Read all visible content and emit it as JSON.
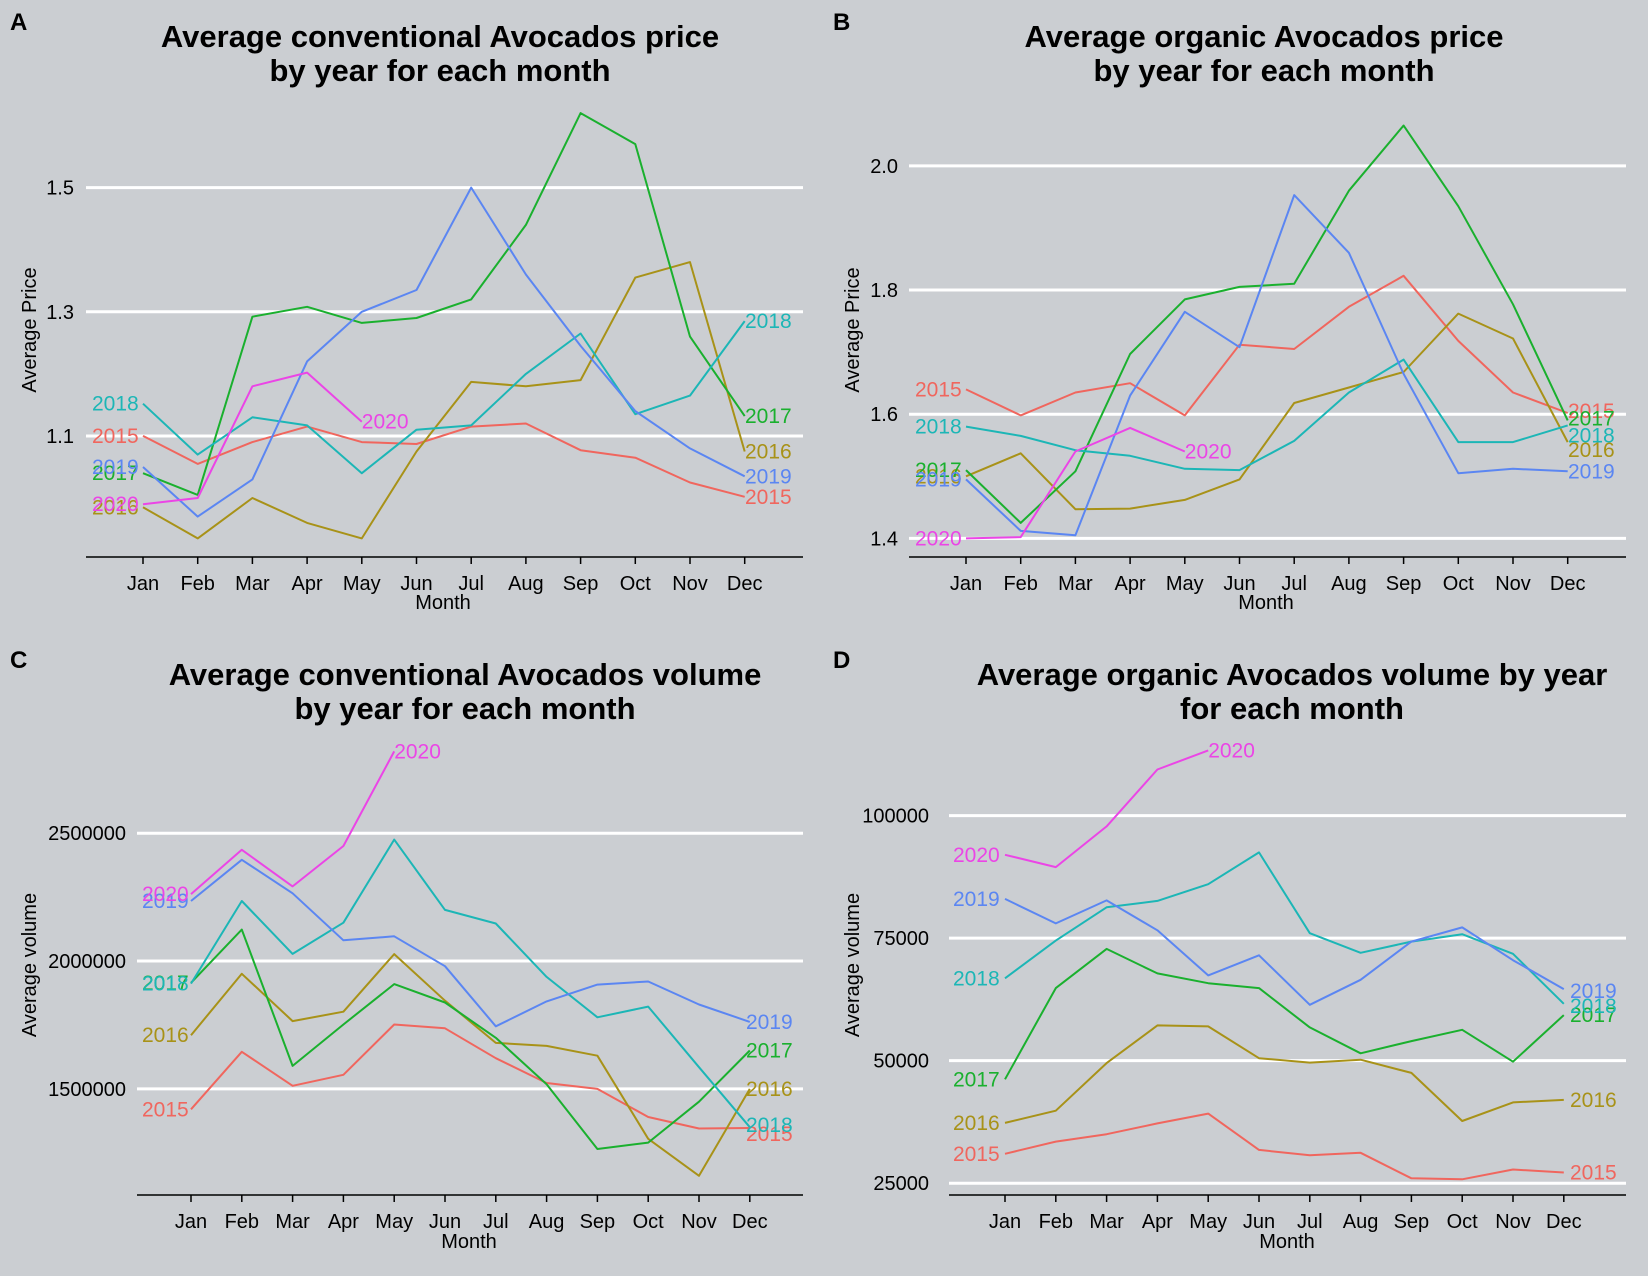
{
  "months": [
    "Jan",
    "Feb",
    "Mar",
    "Apr",
    "May",
    "Jun",
    "Jul",
    "Aug",
    "Sep",
    "Oct",
    "Nov",
    "Dec"
  ],
  "colors": {
    "2015": "#f0665e",
    "2016": "#a89218",
    "2017": "#1ab02e",
    "2018": "#1cb6b6",
    "2019": "#5b86f2",
    "2020": "#eb45e6"
  },
  "chart_data": [
    {
      "panel": "A",
      "type": "line",
      "title": [
        "Average conventional Avocados price",
        "by year for each month"
      ],
      "xlabel": "Month",
      "ylabel": "Average Price",
      "ylim": [
        0.905,
        1.625
      ],
      "yticks": [
        1.1,
        1.3,
        1.5
      ],
      "ytick_labels": [
        "1.1",
        "1.3",
        "1.5"
      ],
      "grid": true,
      "legend": "none",
      "series": [
        {
          "name": "2015",
          "values": [
            1.1,
            1.055,
            1.09,
            1.115,
            1.09,
            1.087,
            1.115,
            1.12,
            1.077,
            1.065,
            1.025,
            1.002
          ]
        },
        {
          "name": "2016",
          "values": [
            0.985,
            0.935,
            1.0,
            0.96,
            0.935,
            1.075,
            1.187,
            1.18,
            1.19,
            1.355,
            1.38,
            1.075
          ]
        },
        {
          "name": "2017",
          "values": [
            1.04,
            1.005,
            1.292,
            1.308,
            1.282,
            1.29,
            1.32,
            1.44,
            1.62,
            1.57,
            1.26,
            1.132
          ]
        },
        {
          "name": "2018",
          "values": [
            1.152,
            1.07,
            1.13,
            1.117,
            1.04,
            1.11,
            1.117,
            1.2,
            1.265,
            1.135,
            1.165,
            1.285
          ]
        },
        {
          "name": "2019",
          "values": [
            1.05,
            0.97,
            1.03,
            1.22,
            1.3,
            1.335,
            1.5,
            1.36,
            1.245,
            1.14,
            1.08,
            1.035
          ]
        },
        {
          "name": "2020",
          "values": [
            0.99,
            1.0,
            1.18,
            1.202,
            1.123
          ]
        }
      ],
      "end_labels": [
        {
          "name": "2015",
          "right": "2015",
          "left": "2015"
        },
        {
          "name": "2016",
          "right": "2016",
          "left": "2016"
        },
        {
          "name": "2017",
          "right": "2017",
          "left": "2017"
        },
        {
          "name": "2018",
          "right": "2018",
          "left": "2018"
        },
        {
          "name": "2019",
          "right": "2019",
          "left": "2019"
        },
        {
          "name": "2020",
          "right": "2020",
          "left": "2020"
        }
      ]
    },
    {
      "panel": "B",
      "type": "line",
      "title": [
        "Average organic Avocados price",
        "by year for each month"
      ],
      "xlabel": "Month",
      "ylabel": "Average Price",
      "ylim": [
        1.37,
        2.09
      ],
      "yticks": [
        1.4,
        1.6,
        1.8,
        2.0
      ],
      "ytick_labels": [
        "1.4",
        "1.6",
        "1.8",
        "2.0"
      ],
      "grid": true,
      "legend": "none",
      "series": [
        {
          "name": "2015",
          "values": [
            1.64,
            1.598,
            1.635,
            1.65,
            1.598,
            1.712,
            1.705,
            1.773,
            1.823,
            1.718,
            1.635,
            1.602
          ]
        },
        {
          "name": "2016",
          "values": [
            1.5,
            1.537,
            1.447,
            1.448,
            1.462,
            1.495,
            1.618,
            1.643,
            1.668,
            1.762,
            1.722,
            1.555
          ]
        },
        {
          "name": "2017",
          "values": [
            1.51,
            1.425,
            1.508,
            1.697,
            1.785,
            1.805,
            1.81,
            1.96,
            2.065,
            1.935,
            1.777,
            1.59
          ]
        },
        {
          "name": "2018",
          "values": [
            1.58,
            1.565,
            1.542,
            1.533,
            1.512,
            1.51,
            1.557,
            1.635,
            1.688,
            1.555,
            1.555,
            1.582
          ]
        },
        {
          "name": "2019",
          "values": [
            1.495,
            1.412,
            1.405,
            1.63,
            1.765,
            1.708,
            1.953,
            1.86,
            1.665,
            1.505,
            1.512,
            1.508
          ]
        },
        {
          "name": "2020",
          "values": [
            1.4,
            1.402,
            1.54,
            1.578,
            1.54
          ]
        }
      ],
      "end_labels": [
        {
          "name": "2015",
          "right": "2015",
          "left": "2015"
        },
        {
          "name": "2016",
          "right": "2016",
          "left": "2016"
        },
        {
          "name": "2017",
          "right": "2017",
          "left": "2017"
        },
        {
          "name": "2018",
          "right": "2018",
          "left": "2018"
        },
        {
          "name": "2019",
          "right": "2019",
          "left": "2019"
        },
        {
          "name": "2020",
          "right": "2020",
          "left": "2020"
        }
      ]
    },
    {
      "panel": "C",
      "type": "line",
      "title": [
        "Average conventional Avocados volume",
        "by year for each month"
      ],
      "xlabel": "Month",
      "ylabel": "Average volume",
      "ylim": [
        1085000,
        2845000
      ],
      "yticks": [
        1500000,
        2000000,
        2500000
      ],
      "ytick_labels": [
        "1500000",
        "2000000",
        "2500000"
      ],
      "grid": true,
      "legend": "none",
      "series": [
        {
          "name": "2015",
          "values": [
            1420000,
            1645000,
            1512000,
            1555000,
            1752000,
            1737000,
            1620000,
            1523000,
            1500000,
            1390000,
            1345000,
            1347000
          ]
        },
        {
          "name": "2016",
          "values": [
            1710000,
            1950000,
            1765000,
            1802000,
            2027000,
            1845000,
            1680000,
            1668000,
            1630000,
            1305000,
            1160000,
            1500000
          ]
        },
        {
          "name": "2017",
          "values": [
            1915000,
            2123000,
            1590000,
            1752000,
            1910000,
            1838000,
            1700000,
            1518000,
            1265000,
            1290000,
            1450000,
            1650000
          ]
        },
        {
          "name": "2018",
          "values": [
            1912000,
            2235000,
            2028000,
            2150000,
            2475000,
            2200000,
            2147000,
            1938000,
            1780000,
            1822000,
            1585000,
            1350000
          ]
        },
        {
          "name": "2019",
          "values": [
            2235000,
            2396000,
            2265000,
            2081000,
            2097000,
            1980000,
            1745000,
            1842000,
            1908000,
            1920000,
            1830000,
            1762000
          ]
        },
        {
          "name": "2020",
          "values": [
            2262000,
            2435000,
            2292000,
            2450000,
            2820000
          ]
        }
      ],
      "end_labels": [
        {
          "name": "2015",
          "right": "2015",
          "left": "2015"
        },
        {
          "name": "2016",
          "right": "2016",
          "left": "2016"
        },
        {
          "name": "2017",
          "right": "2017",
          "left": "2017"
        },
        {
          "name": "2018",
          "right": "2018",
          "left": "2018"
        },
        {
          "name": "2019",
          "right": "2019",
          "left": "2019"
        },
        {
          "name": "2020",
          "right": "2020",
          "left": "2020"
        }
      ]
    },
    {
      "panel": "D",
      "type": "line",
      "title": [
        "Average organic Avocados volume by year",
        "for each month"
      ],
      "xlabel": "Month",
      "ylabel": "Average volume",
      "ylim": [
        22600,
        114400
      ],
      "yticks": [
        25000,
        50000,
        75000,
        100000
      ],
      "ytick_labels": [
        "25000",
        "50000",
        "75000",
        "100000"
      ],
      "grid": true,
      "legend": "none",
      "series": [
        {
          "name": "2015",
          "values": [
            31000,
            33500,
            35000,
            37200,
            39200,
            31800,
            30700,
            31200,
            26000,
            25800,
            27800,
            27200
          ]
        },
        {
          "name": "2016",
          "values": [
            37300,
            39800,
            49500,
            57200,
            57000,
            50500,
            49600,
            50200,
            47500,
            37700,
            41500,
            42000
          ]
        },
        {
          "name": "2017",
          "values": [
            46200,
            64800,
            72800,
            67800,
            65800,
            64800,
            56800,
            51500,
            54000,
            56300,
            49800,
            59300
          ]
        },
        {
          "name": "2018",
          "values": [
            66800,
            74500,
            81300,
            82600,
            86000,
            92500,
            76000,
            72000,
            74300,
            75800,
            71800,
            61600
          ]
        },
        {
          "name": "2019",
          "values": [
            83000,
            78000,
            82700,
            76600,
            67400,
            71500,
            61400,
            66500,
            74300,
            77200,
            70500,
            64600
          ]
        },
        {
          "name": "2020",
          "values": [
            92000,
            89500,
            97800,
            109400,
            113300
          ]
        }
      ],
      "end_labels": [
        {
          "name": "2015",
          "right": "2015",
          "left": "2015"
        },
        {
          "name": "2016",
          "right": "2016",
          "left": "2016"
        },
        {
          "name": "2017",
          "right": "2017",
          "left": "2017"
        },
        {
          "name": "2018",
          "right": "2018",
          "left": "2018"
        },
        {
          "name": "2019",
          "right": "2019",
          "left": "2019"
        },
        {
          "name": "2020",
          "right": "2020",
          "left": "2020"
        }
      ]
    }
  ]
}
